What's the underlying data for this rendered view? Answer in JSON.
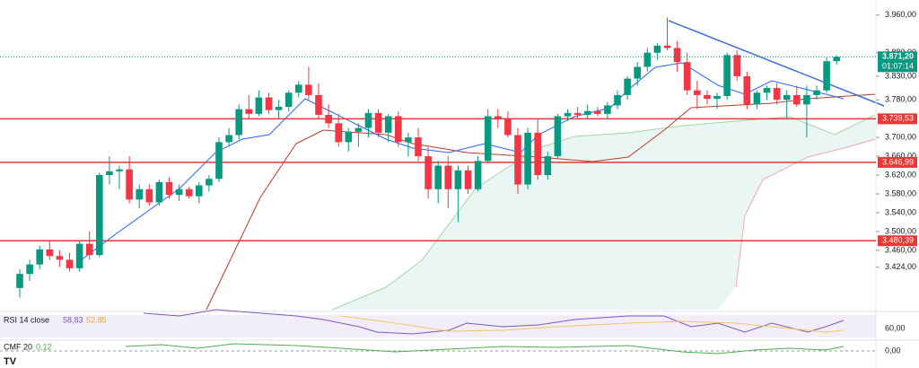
{
  "chart_data": {
    "type": "candlestick",
    "up_color": "#089981",
    "down_color": "#f23645",
    "ylim": [
      3334,
      3992
    ],
    "yticks": [
      {
        "value": 3960,
        "label": "3.960,00"
      },
      {
        "value": 3880,
        "label": "3.880,00"
      },
      {
        "value": 3830,
        "label": "3.830,00"
      },
      {
        "value": 3780,
        "label": "3.780,00"
      },
      {
        "value": 3700,
        "label": "3.700,00"
      },
      {
        "value": 3660,
        "label": "3.660,00"
      },
      {
        "value": 3620,
        "label": "3.620,00"
      },
      {
        "value": 3580,
        "label": "3.580,00"
      },
      {
        "value": 3540,
        "label": "3.540,00"
      },
      {
        "value": 3500,
        "label": "3.500,00"
      },
      {
        "value": 3460,
        "label": "3.460,00"
      },
      {
        "value": 3424,
        "label": "3.424,00"
      }
    ],
    "levels": [
      {
        "value": 3739.53,
        "label": "3.739,53"
      },
      {
        "value": 3646.99,
        "label": "3.646,99"
      },
      {
        "value": 3480.39,
        "label": "3.480,39"
      }
    ],
    "last_price": {
      "value": 3871.2,
      "label": "3.871,20",
      "timer": "01:07:14"
    },
    "ohlc": [
      [
        3380,
        3420,
        3360,
        3410
      ],
      [
        3410,
        3440,
        3395,
        3430
      ],
      [
        3430,
        3470,
        3420,
        3462
      ],
      [
        3462,
        3480,
        3440,
        3448
      ],
      [
        3448,
        3460,
        3425,
        3440
      ],
      [
        3440,
        3455,
        3415,
        3422
      ],
      [
        3422,
        3480,
        3415,
        3474
      ],
      [
        3474,
        3500,
        3440,
        3450
      ],
      [
        3450,
        3625,
        3445,
        3620
      ],
      [
        3620,
        3660,
        3600,
        3628
      ],
      [
        3628,
        3640,
        3590,
        3632
      ],
      [
        3632,
        3660,
        3560,
        3568
      ],
      [
        3568,
        3600,
        3550,
        3590
      ],
      [
        3590,
        3600,
        3555,
        3562
      ],
      [
        3562,
        3610,
        3555,
        3605
      ],
      [
        3605,
        3615,
        3570,
        3578
      ],
      [
        3578,
        3600,
        3565,
        3590
      ],
      [
        3590,
        3595,
        3570,
        3575
      ],
      [
        3575,
        3605,
        3560,
        3598
      ],
      [
        3598,
        3620,
        3585,
        3612
      ],
      [
        3612,
        3700,
        3605,
        3690
      ],
      [
        3690,
        3720,
        3680,
        3705
      ],
      [
        3705,
        3770,
        3695,
        3760
      ],
      [
        3760,
        3790,
        3740,
        3750
      ],
      [
        3750,
        3800,
        3745,
        3785
      ],
      [
        3785,
        3795,
        3750,
        3758
      ],
      [
        3758,
        3780,
        3740,
        3765
      ],
      [
        3765,
        3800,
        3755,
        3795
      ],
      [
        3795,
        3820,
        3785,
        3812
      ],
      [
        3812,
        3850,
        3780,
        3790
      ],
      [
        3790,
        3815,
        3740,
        3748
      ],
      [
        3748,
        3770,
        3720,
        3730
      ],
      [
        3730,
        3750,
        3680,
        3690
      ],
      [
        3690,
        3720,
        3670,
        3712
      ],
      [
        3712,
        3730,
        3680,
        3720
      ],
      [
        3720,
        3760,
        3700,
        3752
      ],
      [
        3752,
        3760,
        3700,
        3710
      ],
      [
        3710,
        3750,
        3690,
        3745
      ],
      [
        3745,
        3755,
        3680,
        3690
      ],
      [
        3690,
        3710,
        3660,
        3700
      ],
      [
        3700,
        3720,
        3650,
        3660
      ],
      [
        3660,
        3680,
        3570,
        3590
      ],
      [
        3590,
        3650,
        3560,
        3640
      ],
      [
        3640,
        3660,
        3550,
        3590
      ],
      [
        3590,
        3640,
        3520,
        3630
      ],
      [
        3630,
        3640,
        3580,
        3590
      ],
      [
        3590,
        3660,
        3585,
        3650
      ],
      [
        3650,
        3760,
        3645,
        3745
      ],
      [
        3745,
        3760,
        3720,
        3740
      ],
      [
        3740,
        3755,
        3700,
        3705
      ],
      [
        3705,
        3720,
        3580,
        3600
      ],
      [
        3600,
        3720,
        3590,
        3710
      ],
      [
        3710,
        3740,
        3610,
        3620
      ],
      [
        3620,
        3670,
        3610,
        3660
      ],
      [
        3660,
        3750,
        3655,
        3745
      ],
      [
        3745,
        3760,
        3735,
        3752
      ],
      [
        3752,
        3765,
        3740,
        3748
      ],
      [
        3748,
        3770,
        3740,
        3756
      ],
      [
        3756,
        3765,
        3745,
        3750
      ],
      [
        3750,
        3775,
        3740,
        3768
      ],
      [
        3768,
        3800,
        3760,
        3790
      ],
      [
        3790,
        3830,
        3780,
        3825
      ],
      [
        3825,
        3860,
        3810,
        3850
      ],
      [
        3850,
        3890,
        3840,
        3880
      ],
      [
        3880,
        3900,
        3865,
        3895
      ],
      [
        3895,
        3955,
        3885,
        3890
      ],
      [
        3890,
        3905,
        3840,
        3860
      ],
      [
        3860,
        3880,
        3790,
        3800
      ],
      [
        3800,
        3820,
        3760,
        3790
      ],
      [
        3790,
        3800,
        3770,
        3782
      ],
      [
        3782,
        3795,
        3760,
        3788
      ],
      [
        3788,
        3880,
        3780,
        3875
      ],
      [
        3875,
        3885,
        3820,
        3830
      ],
      [
        3830,
        3840,
        3760,
        3770
      ],
      [
        3770,
        3800,
        3760,
        3795
      ],
      [
        3795,
        3810,
        3780,
        3805
      ],
      [
        3805,
        3815,
        3770,
        3780
      ],
      [
        3780,
        3800,
        3740,
        3790
      ],
      [
        3790,
        3810,
        3765,
        3770
      ],
      [
        3770,
        3810,
        3700,
        3790
      ],
      [
        3790,
        3810,
        3780,
        3800
      ],
      [
        3800,
        3870,
        3795,
        3862
      ],
      [
        3862,
        3875,
        3855,
        3871.2
      ]
    ],
    "rsi": {
      "title": "RSI 14 close",
      "value": "58,83",
      "average": "52,85",
      "tick": "60,00"
    },
    "cmf": {
      "title": "CMF 20",
      "value": "0,12",
      "tick": "0,00"
    }
  }
}
